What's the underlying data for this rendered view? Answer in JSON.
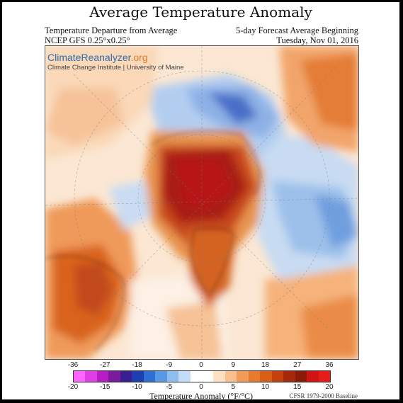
{
  "title": "Average Temperature Anomaly",
  "header": {
    "left_line1": "Temperature Departure from Average",
    "left_line2": "NCEP GFS 0.25°x0.25°",
    "right_line1": "5-day Forecast Average Beginning",
    "right_line2": "Tuesday, Nov 01, 2016"
  },
  "brand": {
    "name_main": "ClimateReanalyzer",
    "name_suffix": ".org",
    "subtitle": "Climate Change Institute | University of Maine",
    "colors": {
      "main": "#2a6fb0",
      "suffix": "#e0792a"
    }
  },
  "colorbar": {
    "label": "Temperature Anomaly (°F/°C)",
    "fahrenheit_ticks": [
      "-36",
      "-27",
      "-18",
      "-9",
      "0",
      "9",
      "18",
      "27",
      "36"
    ],
    "celsius_ticks": [
      "-20",
      "-15",
      "-10",
      "-5",
      "0",
      "5",
      "10",
      "15",
      "20"
    ],
    "colors": [
      "#ff66ff",
      "#e23ee6",
      "#b51cc4",
      "#7a1a9c",
      "#3b1e8f",
      "#1f3fb0",
      "#2e6fd1",
      "#5b98e3",
      "#8fbdee",
      "#c3dcf7",
      "#ffffff",
      "#ffffff",
      "#fde1c2",
      "#f9c08d",
      "#f29b58",
      "#e87a2e",
      "#d85e18",
      "#c2410f",
      "#a52a0d",
      "#8a1a0a",
      "#d01313",
      "#e81b1b"
    ]
  },
  "baseline": "CFSR 1979-2000 Baseline"
}
